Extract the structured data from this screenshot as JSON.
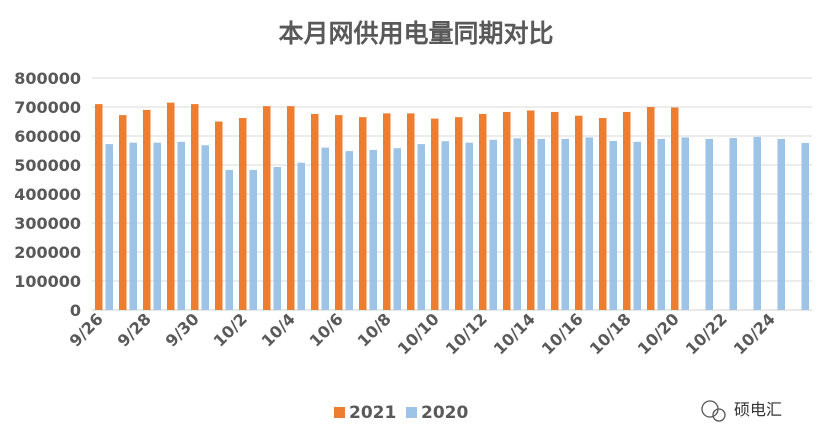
{
  "chart_data": {
    "type": "bar",
    "title": "本月网供用电量同期对比",
    "xlabel": "",
    "ylabel": "",
    "ylim": [
      0,
      800000
    ],
    "yticks": [
      "0",
      "100000",
      "200000",
      "300000",
      "400000",
      "500000",
      "600000",
      "700000",
      "800000"
    ],
    "categories": [
      "9/26",
      "9/27",
      "9/28",
      "9/29",
      "9/30",
      "10/1",
      "10/2",
      "10/3",
      "10/4",
      "10/5",
      "10/6",
      "10/7",
      "10/8",
      "10/9",
      "10/10",
      "10/11",
      "10/12",
      "10/13",
      "10/14",
      "10/15",
      "10/16",
      "10/17",
      "10/18",
      "10/19",
      "10/20",
      "10/21",
      "10/22",
      "10/23",
      "10/24",
      "10/25"
    ],
    "xtick_labels": [
      "9/26",
      "9/28",
      "9/30",
      "10/2",
      "10/4",
      "10/6",
      "10/8",
      "10/10",
      "10/12",
      "10/14",
      "10/16",
      "10/18",
      "10/20",
      "10/22",
      "10/24"
    ],
    "series": [
      {
        "name": "2021",
        "color": "#ED7D31",
        "values": [
          710000,
          672000,
          690000,
          715000,
          710000,
          650000,
          662000,
          703000,
          703000,
          676000,
          672000,
          665000,
          678000,
          678000,
          660000,
          665000,
          676000,
          683000,
          688000,
          683000,
          670000,
          662000,
          683000,
          700000,
          698000,
          null,
          null,
          null,
          null,
          null
        ]
      },
      {
        "name": "2020",
        "color": "#9DC3E6",
        "values": [
          572000,
          577000,
          577000,
          580000,
          568000,
          483000,
          483000,
          493000,
          508000,
          560000,
          548000,
          552000,
          558000,
          572000,
          582000,
          577000,
          587000,
          592000,
          590000,
          590000,
          595000,
          583000,
          580000,
          590000,
          595000,
          590000,
          593000,
          597000,
          590000,
          576000
        ]
      }
    ],
    "legend": "bottom",
    "grid": true
  },
  "watermark": {
    "icon": "wechat-icon",
    "text": "硕电汇"
  }
}
